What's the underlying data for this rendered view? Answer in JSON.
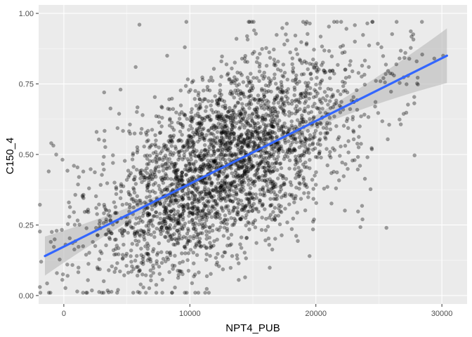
{
  "chart_data": {
    "type": "scatter",
    "title": "",
    "xlabel": "NPT4_PUB",
    "ylabel": "C150_4",
    "xlim": [
      -2000,
      32000
    ],
    "ylim": [
      -0.03,
      1.03
    ],
    "x_ticks": [
      0,
      10000,
      20000,
      30000
    ],
    "x_tick_labels": [
      "0",
      "10000",
      "20000",
      "30000"
    ],
    "y_ticks": [
      0.0,
      0.25,
      0.5,
      0.75,
      1.0
    ],
    "y_tick_labels": [
      "0.00",
      "0.25",
      "0.50",
      "0.75",
      "1.00"
    ],
    "grid": true,
    "legend": "none",
    "point_color": "#000000",
    "point_alpha": 0.35,
    "panel_background": "#ebebeb",
    "fit": {
      "type": "linear",
      "color": "#3366ff",
      "band_color": "#bdbdbd",
      "x": [
        -1500,
        30400
      ],
      "y": [
        0.14,
        0.85
      ]
    },
    "sampled_points_note_count": 3000,
    "points": [
      [
        -1800,
        0.12
      ],
      [
        -1200,
        0.44
      ],
      [
        -1000,
        0.54
      ],
      [
        300,
        0.07
      ],
      [
        400,
        0.33
      ],
      [
        800,
        0.46
      ],
      [
        1200,
        0.42
      ],
      [
        1500,
        0.35
      ],
      [
        2000,
        0.38
      ],
      [
        2300,
        0.19
      ],
      [
        2600,
        0.58
      ],
      [
        3000,
        0.15
      ],
      [
        3200,
        0.72
      ],
      [
        3600,
        0.3
      ],
      [
        3900,
        0.47
      ],
      [
        4300,
        0.02
      ],
      [
        4500,
        0.73
      ],
      [
        5000,
        0.41
      ],
      [
        5400,
        0.24
      ],
      [
        5700,
        0.81
      ],
      [
        6000,
        0.96
      ],
      [
        6300,
        0.12
      ],
      [
        6700,
        0.55
      ],
      [
        7100,
        0.08
      ],
      [
        7400,
        0.28
      ],
      [
        7800,
        0.63
      ],
      [
        8200,
        0.85
      ],
      [
        8600,
        0.2
      ],
      [
        8900,
        0.34
      ],
      [
        9200,
        0.51
      ],
      [
        9600,
        0.88
      ],
      [
        9900,
        0.15
      ],
      [
        10300,
        0.42
      ],
      [
        10700,
        0.61
      ],
      [
        11000,
        0.3
      ],
      [
        11400,
        0.74
      ],
      [
        11800,
        0.23
      ],
      [
        12100,
        0.47
      ],
      [
        12500,
        0.83
      ],
      [
        12900,
        0.36
      ],
      [
        13300,
        0.59
      ],
      [
        13700,
        0.91
      ],
      [
        14000,
        0.27
      ],
      [
        14400,
        0.5
      ],
      [
        14800,
        0.69
      ],
      [
        15100,
        0.94
      ],
      [
        15500,
        0.41
      ],
      [
        15900,
        0.57
      ],
      [
        16300,
        0.18
      ],
      [
        16700,
        0.77
      ],
      [
        17100,
        0.62
      ],
      [
        17500,
        0.89
      ],
      [
        17900,
        0.45
      ],
      [
        18300,
        0.71
      ],
      [
        18700,
        0.56
      ],
      [
        19100,
        0.83
      ],
      [
        19500,
        0.14
      ],
      [
        19900,
        0.68
      ],
      [
        20300,
        0.51
      ],
      [
        20700,
        0.79
      ],
      [
        21100,
        0.63
      ],
      [
        21600,
        0.38
      ],
      [
        22100,
        0.86
      ],
      [
        22500,
        0.72
      ],
      [
        23000,
        0.58
      ],
      [
        23500,
        0.46
      ],
      [
        23700,
        0.27
      ],
      [
        24200,
        0.81
      ],
      [
        24700,
        0.67
      ],
      [
        25200,
        0.88
      ],
      [
        25600,
        0.24
      ],
      [
        26200,
        0.78
      ],
      [
        27100,
        0.86
      ],
      [
        28000,
        0.83
      ],
      [
        29400,
        0.84
      ],
      [
        30100,
        0.85
      ]
    ]
  }
}
